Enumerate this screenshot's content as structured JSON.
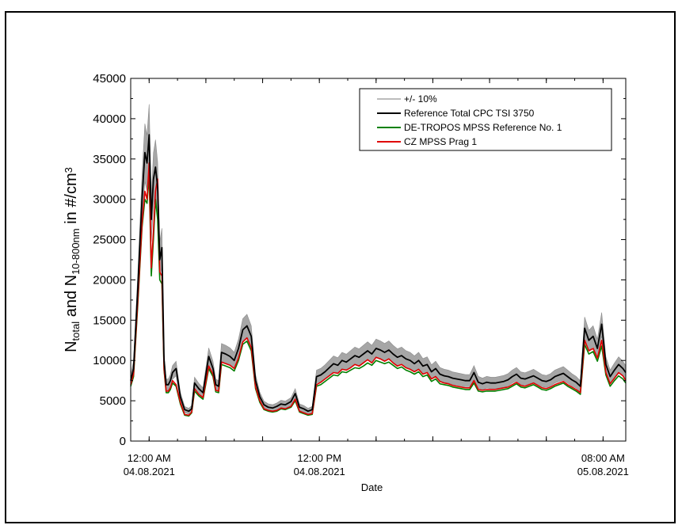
{
  "chart_data": {
    "type": "line",
    "ylabel": {
      "parts": [
        {
          "text": "N",
          "style": "normal"
        },
        {
          "text": "total",
          "style": "sub"
        },
        {
          "text": " and N",
          "style": "normal"
        },
        {
          "text": "10-800nm",
          "style": "sub"
        },
        {
          "text": " in #/cm",
          "style": "normal"
        },
        {
          "text": "3",
          "style": "sup"
        }
      ]
    },
    "xlabel": "Date",
    "ylim": [
      0,
      45000
    ],
    "yticks": [
      0,
      5000,
      10000,
      15000,
      20000,
      25000,
      30000,
      35000,
      40000,
      45000
    ],
    "ytick_labels": [
      "0",
      "5000",
      "10000",
      "15000",
      "20000",
      "25000",
      "30000",
      "35000",
      "40000",
      "45000"
    ],
    "x_axis_unit": "hours relative to 12:00 AM 04.08.2021",
    "xlim": [
      -1.3,
      33.6
    ],
    "xticks_major": [
      0,
      12,
      32
    ],
    "xtick_labels": [
      {
        "time": "12:00 AM",
        "date": "04.08.2021"
      },
      {
        "time": "12:00 PM",
        "date": "04.08.2021"
      },
      {
        "time": "08:00 AM",
        "date": "05.08.2021"
      }
    ],
    "xticks_minor": [
      4,
      8,
      16,
      20,
      24,
      28
    ],
    "grid": false,
    "legend_position": "top-right",
    "band_label": "+/- 10%",
    "band_color": "#a6a6a6",
    "series": [
      {
        "name": "Reference Total CPC TSI 3750",
        "color": "#000000",
        "x": [
          -1.3,
          -1.1,
          -0.8,
          -0.5,
          -0.3,
          -0.15,
          0,
          0.15,
          0.3,
          0.45,
          0.6,
          0.75,
          0.9,
          1.05,
          1.2,
          1.35,
          1.5,
          1.65,
          1.9,
          2.2,
          2.5,
          2.8,
          3.0,
          3.2,
          3.5,
          3.8,
          4.2,
          4.5,
          4.7,
          4.9,
          5.1,
          5.4,
          5.7,
          6.0,
          6.3,
          6.6,
          6.9,
          7.2,
          7.5,
          7.8,
          8.1,
          8.4,
          8.7,
          9.0,
          9.3,
          9.6,
          10.0,
          10.3,
          10.6,
          10.9,
          11.2,
          11.5,
          11.8,
          12.1,
          12.4,
          12.7,
          13.0,
          13.3,
          13.6,
          13.9,
          14.2,
          14.5,
          14.8,
          15.1,
          15.4,
          15.7,
          16.0,
          16.3,
          16.6,
          16.9,
          17.2,
          17.5,
          17.8,
          18.1,
          18.4,
          18.7,
          19.0,
          19.3,
          19.6,
          19.9,
          20.2,
          20.5,
          20.8,
          21.1,
          21.4,
          21.7,
          22.0,
          22.3,
          22.6,
          22.9,
          23.2,
          23.5,
          23.8,
          24.1,
          24.4,
          24.7,
          25.0,
          25.3,
          25.6,
          25.9,
          26.2,
          26.5,
          26.8,
          27.1,
          27.4,
          27.7,
          28.0,
          28.3,
          28.6,
          28.9,
          29.2,
          29.5,
          29.8,
          30.1,
          30.4,
          30.7,
          31.0,
          31.3,
          31.6,
          31.9,
          32.2,
          32.5,
          32.8,
          33.1,
          33.4,
          33.6
        ],
        "y": [
          7500,
          9000,
          19000,
          30000,
          35800,
          34500,
          38000,
          27500,
          32500,
          34000,
          31500,
          22500,
          24000,
          10000,
          7000,
          7000,
          7500,
          8500,
          9000,
          5500,
          3900,
          3700,
          4000,
          7200,
          6500,
          6000,
          10500,
          9000,
          7000,
          6800,
          11000,
          10800,
          10500,
          10000,
          11500,
          13800,
          14300,
          13000,
          7500,
          5500,
          4500,
          4200,
          4100,
          4300,
          4600,
          4500,
          4900,
          5900,
          4200,
          4000,
          3700,
          3900,
          8000,
          8200,
          8600,
          9100,
          9600,
          9400,
          10000,
          9800,
          10200,
          10600,
          10400,
          10800,
          11200,
          10800,
          11500,
          11300,
          11000,
          11300,
          10800,
          10400,
          10600,
          10200,
          10000,
          9600,
          10000,
          9300,
          9500,
          8600,
          9000,
          8300,
          8100,
          8000,
          7800,
          7700,
          7600,
          7500,
          7500,
          8500,
          7300,
          7100,
          7300,
          7200,
          7200,
          7300,
          7400,
          7600,
          8000,
          8300,
          7800,
          7700,
          7900,
          8100,
          7800,
          7500,
          7400,
          7600,
          8000,
          8200,
          8400,
          8000,
          7600,
          7300,
          6800,
          14000,
          12500,
          13000,
          11500,
          14500,
          9500,
          8000,
          8800,
          9500,
          9000,
          8500
        ],
        "y_plot_override": null
      },
      {
        "name": "DE-TROPOS MPSS Reference No. 1",
        "color": "#008000",
        "x_ref": "series.0.x"
      },
      {
        "name": "CZ MPSS Prag 1",
        "color": "#e00000",
        "x_ref": "series.0.x"
      }
    ],
    "series_y_green": [
      6800,
      8000,
      17000,
      26500,
      30000,
      29500,
      33000,
      20500,
      25000,
      30000,
      27500,
      20000,
      19500,
      8800,
      6000,
      6000,
      6400,
      7200,
      6800,
      4600,
      3200,
      3100,
      3500,
      6200,
      5600,
      5200,
      9000,
      8000,
      6100,
      6000,
      9500,
      9300,
      9100,
      8700,
      10000,
      12000,
      12400,
      11200,
      6500,
      4800,
      3900,
      3700,
      3600,
      3700,
      4000,
      3900,
      4200,
      5000,
      3600,
      3400,
      3200,
      3300,
      6800,
      7000,
      7400,
      7800,
      8200,
      8100,
      8600,
      8500,
      8800,
      9100,
      9000,
      9300,
      9700,
      9400,
      10000,
      9800,
      9600,
      9800,
      9400,
      9000,
      9200,
      8800,
      8600,
      8300,
      8600,
      8000,
      8200,
      7400,
      7700,
      7100,
      7000,
      6900,
      6700,
      6600,
      6500,
      6400,
      6400,
      7200,
      6200,
      6100,
      6200,
      6200,
      6200,
      6300,
      6400,
      6500,
      6800,
      7100,
      6700,
      6600,
      6800,
      7000,
      6700,
      6400,
      6300,
      6500,
      6800,
      7000,
      7200,
      6800,
      6500,
      6200,
      5800,
      12000,
      10800,
      11100,
      9900,
      11800,
      8200,
      6800,
      7500,
      8100,
      7700,
      7200
    ],
    "series_y_red": [
      7000,
      8300,
      17500,
      27000,
      31000,
      30000,
      34500,
      21500,
      26000,
      31000,
      32500,
      21000,
      20500,
      9000,
      6200,
      6200,
      6600,
      7500,
      7000,
      4800,
      3300,
      3200,
      3600,
      6500,
      5800,
      5400,
      9300,
      8300,
      6300,
      6200,
      9800,
      9600,
      9400,
      9000,
      10300,
      12300,
      12800,
      11600,
      6700,
      5000,
      4000,
      3800,
      3700,
      3800,
      4100,
      4000,
      4300,
      5200,
      3700,
      3500,
      3300,
      3400,
      7000,
      7300,
      7700,
      8100,
      8500,
      8400,
      8900,
      8800,
      9100,
      9500,
      9300,
      9700,
      10100,
      9700,
      10400,
      10200,
      9900,
      10200,
      9700,
      9300,
      9500,
      9100,
      8900,
      8600,
      8900,
      8300,
      8500,
      7700,
      8000,
      7400,
      7200,
      7100,
      6900,
      6800,
      6700,
      6600,
      6600,
      7500,
      6400,
      6300,
      6400,
      6400,
      6400,
      6500,
      6600,
      6700,
      7000,
      7300,
      6900,
      6800,
      7000,
      7200,
      6900,
      6600,
      6500,
      6700,
      7000,
      7200,
      7400,
      7000,
      6700,
      6400,
      6000,
      12500,
      11200,
      11500,
      10300,
      12500,
      8500,
      7100,
      7800,
      8500,
      8100,
      7500
    ]
  }
}
